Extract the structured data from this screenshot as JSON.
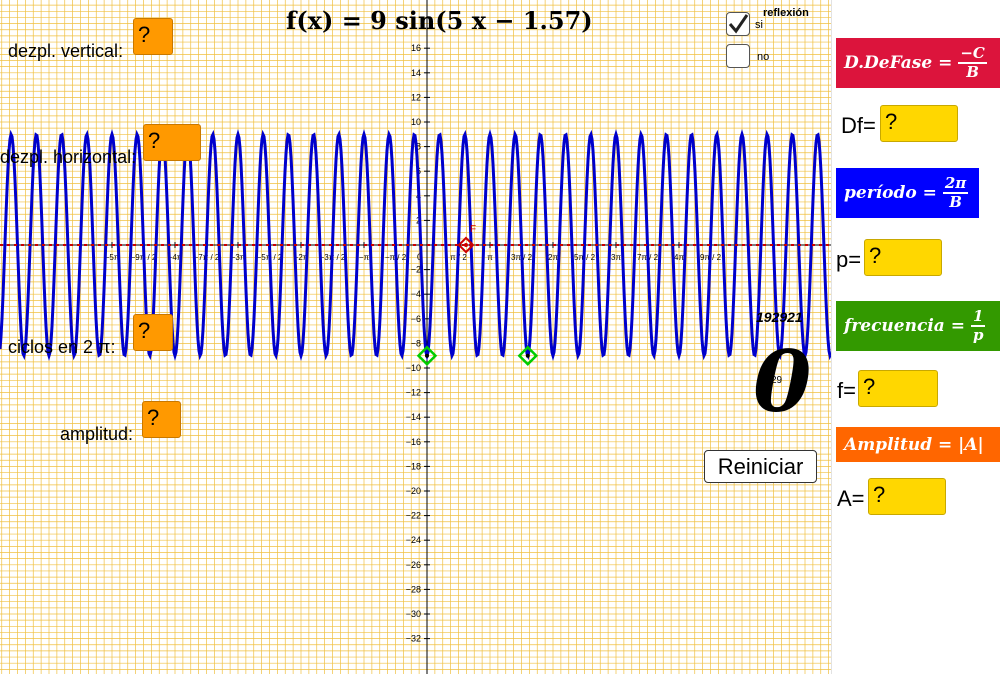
{
  "formula": {
    "prefix": "f(x) = 9 sin(5 x − 1.57)"
  },
  "left_labels": {
    "vertical": "dezpl. vertical",
    "horizontal": "dezpl. horizontal",
    "cycles": "ciclos en 2 π",
    "amplitude": "amplitud"
  },
  "left_values": {
    "vertical": "?",
    "horizontal": "?",
    "cycles": "?",
    "amplitude": "?"
  },
  "colon": ":",
  "reflection": {
    "title": "reflexión",
    "yes": "si",
    "no": "no",
    "yes_checked": true,
    "no_checked": false
  },
  "counter": "192921",
  "big_number": "0",
  "small_number": "29",
  "reset_label": "Reiniciar",
  "point_label": "F",
  "graph": {
    "y_ticks": [
      16,
      14,
      12,
      10,
      8,
      6,
      4,
      2,
      -2,
      -4,
      -6,
      -8,
      -10,
      -12,
      -14,
      -16,
      -18,
      -20,
      -22,
      -24,
      -26,
      -28,
      -30,
      -32
    ],
    "x_ticks": [
      "−5π",
      "−9π / 2",
      "−4π",
      "−7π / 2",
      "−3π",
      "−5π / 2",
      "−2π",
      "−3π / 2",
      "−π",
      "−π / 2",
      "π / 2",
      "π",
      "3π / 2",
      "2π",
      "5π / 2",
      "3π",
      "7π / 2",
      "4π",
      "9π / 2"
    ],
    "origin_label": "0",
    "amplitude": 9,
    "b": 5,
    "c": 1.57,
    "curve_color": "#0000cc",
    "axis_point_color": "#cc0000",
    "green_point_color": "#00cc00",
    "grid_color": "#f0c040"
  },
  "panel": {
    "phase_banner": {
      "text": "D.DeFase = ",
      "num": "−C",
      "den": "B",
      "color": "#dc143c"
    },
    "phase_label": "Df=",
    "phase_value": "?",
    "period_banner": {
      "text": "período = ",
      "num": "2π",
      "den": "B",
      "color": "#0000ff"
    },
    "period_label": "p=",
    "period_value": "?",
    "freq_banner": {
      "text": "frecuencia = ",
      "num": "1",
      "den": "p",
      "color": "#339900"
    },
    "freq_label": "f=",
    "freq_value": "?",
    "amp_banner": {
      "text": "Amplitud = |A|",
      "color": "#ff6600"
    },
    "amp_label": "A=",
    "amp_value": "?"
  }
}
